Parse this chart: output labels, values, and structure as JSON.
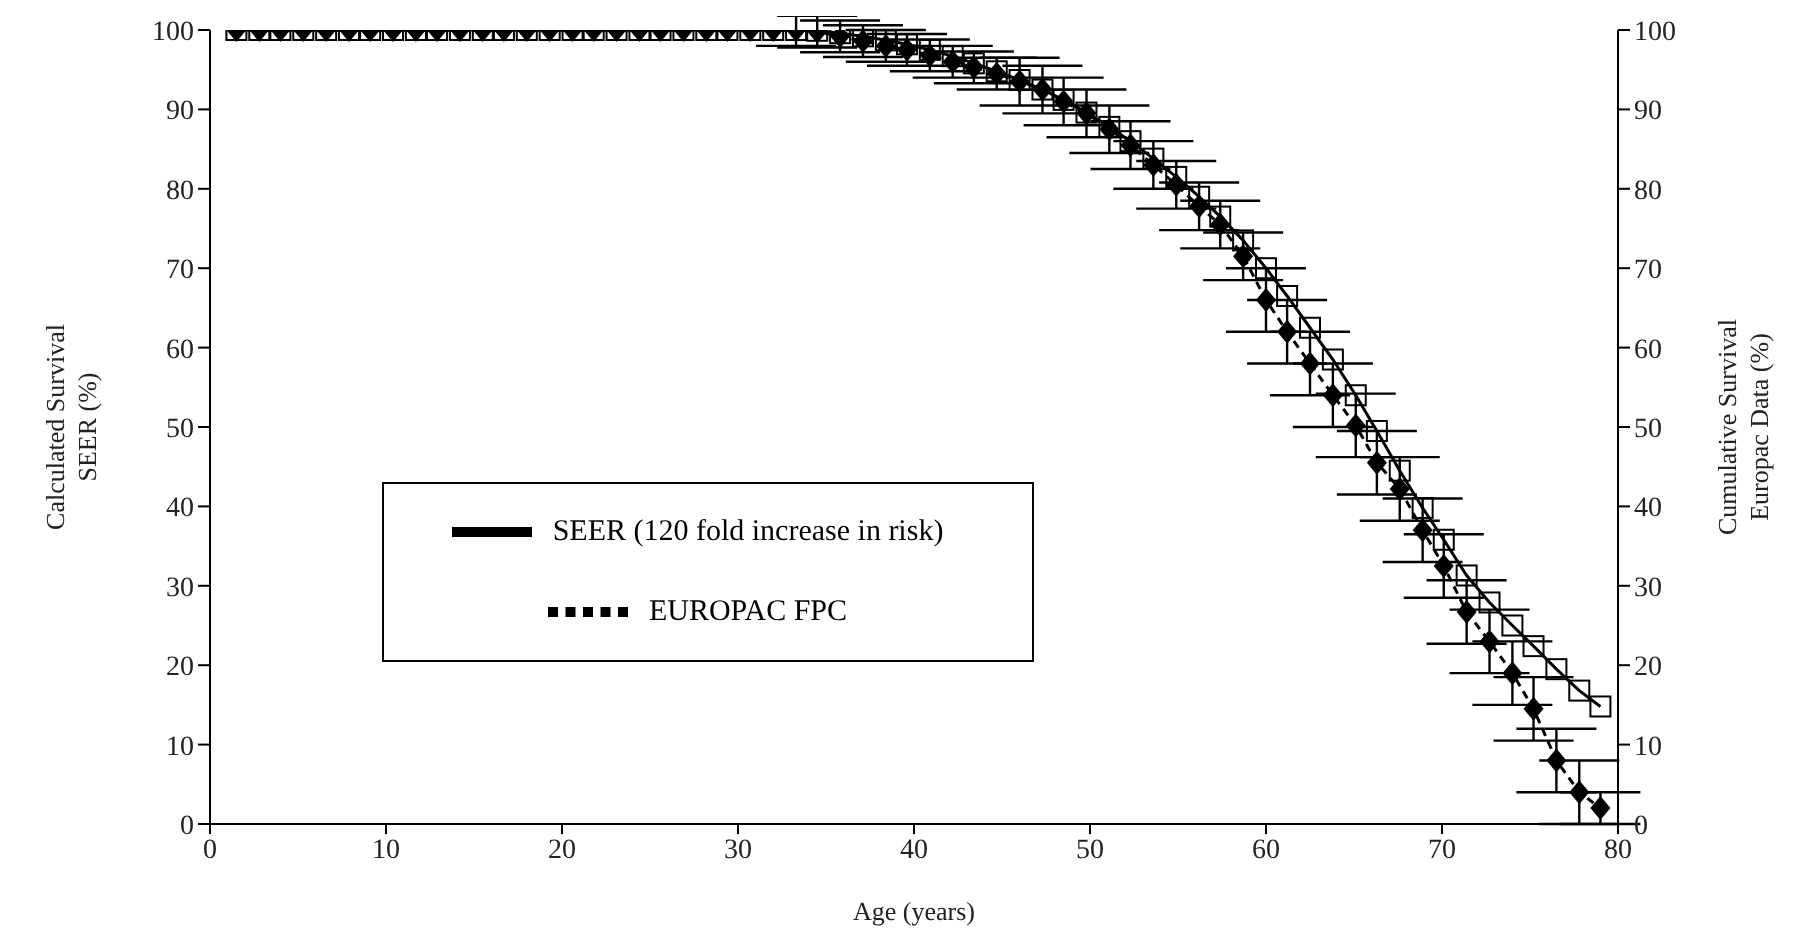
{
  "chart_data": {
    "type": "line",
    "xlabel": "Age (years)",
    "ylabel": "Calculated Survival\nSEER (%)",
    "y2label": "Cumulative Survival\nEuropac Data (%)",
    "x": [
      1.5,
      2.8,
      4.0,
      5.3,
      6.6,
      7.9,
      9.1,
      10.4,
      11.7,
      12.9,
      14.2,
      15.5,
      16.7,
      18.0,
      19.3,
      20.6,
      21.8,
      23.1,
      24.4,
      25.6,
      26.9,
      28.2,
      29.4,
      30.7,
      32.0,
      33.3,
      34.5,
      35.8,
      37.1,
      38.4,
      39.6,
      40.9,
      42.2,
      43.4,
      44.7,
      46.0,
      47.3,
      48.5,
      49.8,
      51.1,
      52.3,
      53.6,
      54.9,
      56.2,
      57.4,
      58.7,
      60.0,
      61.2,
      62.5,
      63.8,
      65.1,
      66.3,
      67.6,
      68.9,
      70.1,
      71.4,
      72.7,
      74.0,
      75.2,
      76.5,
      77.8,
      79.0
    ],
    "series": [
      {
        "name": "SEER (120 fold increase in risk)",
        "color": "#000000",
        "marker": "square",
        "line_style": "solid",
        "values": [
          100,
          100,
          100,
          100,
          100,
          100,
          100,
          100,
          100,
          100,
          100,
          100,
          100,
          100,
          100,
          100,
          100,
          100,
          100,
          100,
          100,
          100,
          100,
          100,
          100,
          100,
          99.9,
          99.6,
          99.2,
          98.7,
          98.2,
          97.5,
          96.7,
          95.8,
          94.8,
          93.7,
          92.5,
          91.2,
          89.6,
          87.8,
          86,
          83.8,
          81.5,
          79,
          76.5,
          73.5,
          70,
          66.5,
          62.5,
          58.5,
          54,
          49.5,
          44.5,
          39.8,
          35.8,
          31.3,
          27.9,
          25,
          22.4,
          19.5,
          16.8,
          14.8
        ]
      },
      {
        "name": "EUROPAC FPC",
        "color": "#000000",
        "marker": "diamond",
        "line_style": "dashed",
        "values": [
          100,
          100,
          100,
          100,
          100,
          100,
          100,
          100,
          100,
          100,
          100,
          100,
          100,
          100,
          100,
          100,
          100,
          100,
          100,
          100,
          100,
          100,
          100,
          100,
          100,
          100,
          99.8,
          99.2,
          98.6,
          98,
          97.5,
          96.8,
          96,
          95.3,
          94.5,
          93.5,
          92.5,
          91,
          89.5,
          87.5,
          85.5,
          83,
          80.5,
          77.8,
          75.5,
          71.5,
          66,
          62,
          58,
          54,
          50.2,
          45.5,
          42.2,
          37,
          32.5,
          26.7,
          23,
          19,
          14.5,
          8,
          4,
          2
        ],
        "errors": [
          null,
          null,
          null,
          null,
          null,
          null,
          null,
          null,
          null,
          null,
          null,
          null,
          null,
          null,
          null,
          null,
          null,
          null,
          null,
          null,
          null,
          null,
          null,
          null,
          null,
          2,
          2,
          2,
          2,
          2,
          2,
          2,
          2,
          2,
          2,
          3,
          3,
          3,
          3,
          3,
          3,
          3,
          3,
          3,
          3,
          3,
          4,
          4,
          4,
          4,
          4,
          4,
          4,
          4,
          4,
          4,
          4,
          4,
          4,
          4,
          4,
          2
        ]
      }
    ],
    "xlim": [
      0,
      80
    ],
    "xticks": [
      0,
      10,
      20,
      30,
      40,
      50,
      60,
      70,
      80
    ],
    "ylim": [
      0,
      100
    ],
    "yticks": [
      0,
      10,
      20,
      30,
      40,
      50,
      60,
      70,
      80,
      90,
      100
    ],
    "y2lim": [
      0,
      100
    ],
    "y2ticks": [
      0,
      10,
      20,
      30,
      40,
      50,
      60,
      70,
      80,
      90,
      100
    ],
    "legend": "left",
    "grid": false
  }
}
